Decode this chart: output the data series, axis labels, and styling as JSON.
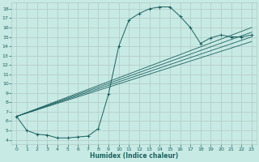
{
  "xlabel": "Humidex (Indice chaleur)",
  "bg_color": "#c8eae4",
  "grid_color": "#b0c8c4",
  "line_color": "#1a6060",
  "xlim": [
    -0.5,
    23.5
  ],
  "ylim": [
    3.5,
    18.7
  ],
  "xticks": [
    0,
    1,
    2,
    3,
    4,
    5,
    6,
    7,
    8,
    9,
    10,
    11,
    12,
    13,
    14,
    15,
    16,
    17,
    18,
    19,
    20,
    21,
    22,
    23
  ],
  "yticks": [
    4,
    5,
    6,
    7,
    8,
    9,
    10,
    11,
    12,
    13,
    14,
    15,
    16,
    17,
    18
  ],
  "main_x": [
    0,
    1,
    2,
    3,
    4,
    5,
    6,
    7,
    8,
    9,
    10,
    11,
    12,
    13,
    14,
    15,
    16,
    17,
    18,
    19,
    20,
    21,
    22,
    23
  ],
  "main_y": [
    6.5,
    5.0,
    4.6,
    4.5,
    4.2,
    4.2,
    4.3,
    4.4,
    5.2,
    8.9,
    14.0,
    16.8,
    17.5,
    18.0,
    18.2,
    18.2,
    17.2,
    16.0,
    14.3,
    14.9,
    15.2,
    15.0,
    15.0,
    15.2
  ],
  "straight_lines": [
    [
      6.5,
      16.0
    ],
    [
      6.5,
      15.5
    ],
    [
      6.5,
      15.0
    ],
    [
      6.5,
      14.5
    ]
  ]
}
